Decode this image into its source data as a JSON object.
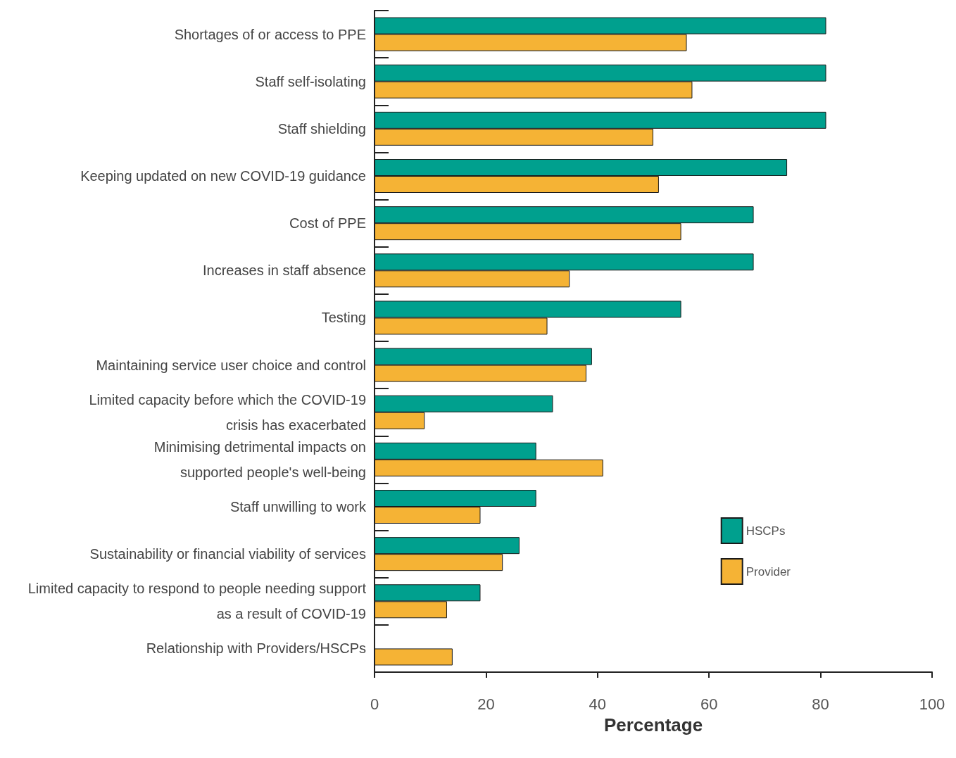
{
  "chart_data": {
    "type": "bar",
    "orientation": "horizontal",
    "xlabel": "Percentage",
    "categories": [
      "Shortages of or access to PPE",
      "Staff self-isolating",
      "Staff shielding",
      "Keeping updated on new COVID-19 guidance",
      "Cost of PPE",
      "Increases in staff absence",
      "Testing",
      "Maintaining service user choice and control",
      "Limited capacity before which the COVID-19\ncrisis has exacerbated",
      "Minimising detrimental impacts on\nsupported people's well-being",
      "Staff unwilling to work",
      "Sustainability or financial viability of services",
      "Limited capacity to respond to people needing support\nas a result of COVID-19",
      "Relationship with Providers/HSCPs"
    ],
    "series": [
      {
        "name": "HSCPs",
        "color": "#00a08e",
        "values": [
          81,
          81,
          81,
          74,
          68,
          68,
          55,
          39,
          32,
          29,
          29,
          26,
          19,
          null
        ]
      },
      {
        "name": "Provider",
        "color": "#f5b335",
        "values": [
          56,
          57,
          50,
          51,
          55,
          35,
          31,
          38,
          9,
          41,
          19,
          23,
          13,
          14
        ]
      }
    ],
    "xlim": [
      0,
      100
    ],
    "xticks": [
      0,
      20,
      40,
      60,
      80,
      100
    ],
    "grid": false,
    "legend": "right"
  }
}
